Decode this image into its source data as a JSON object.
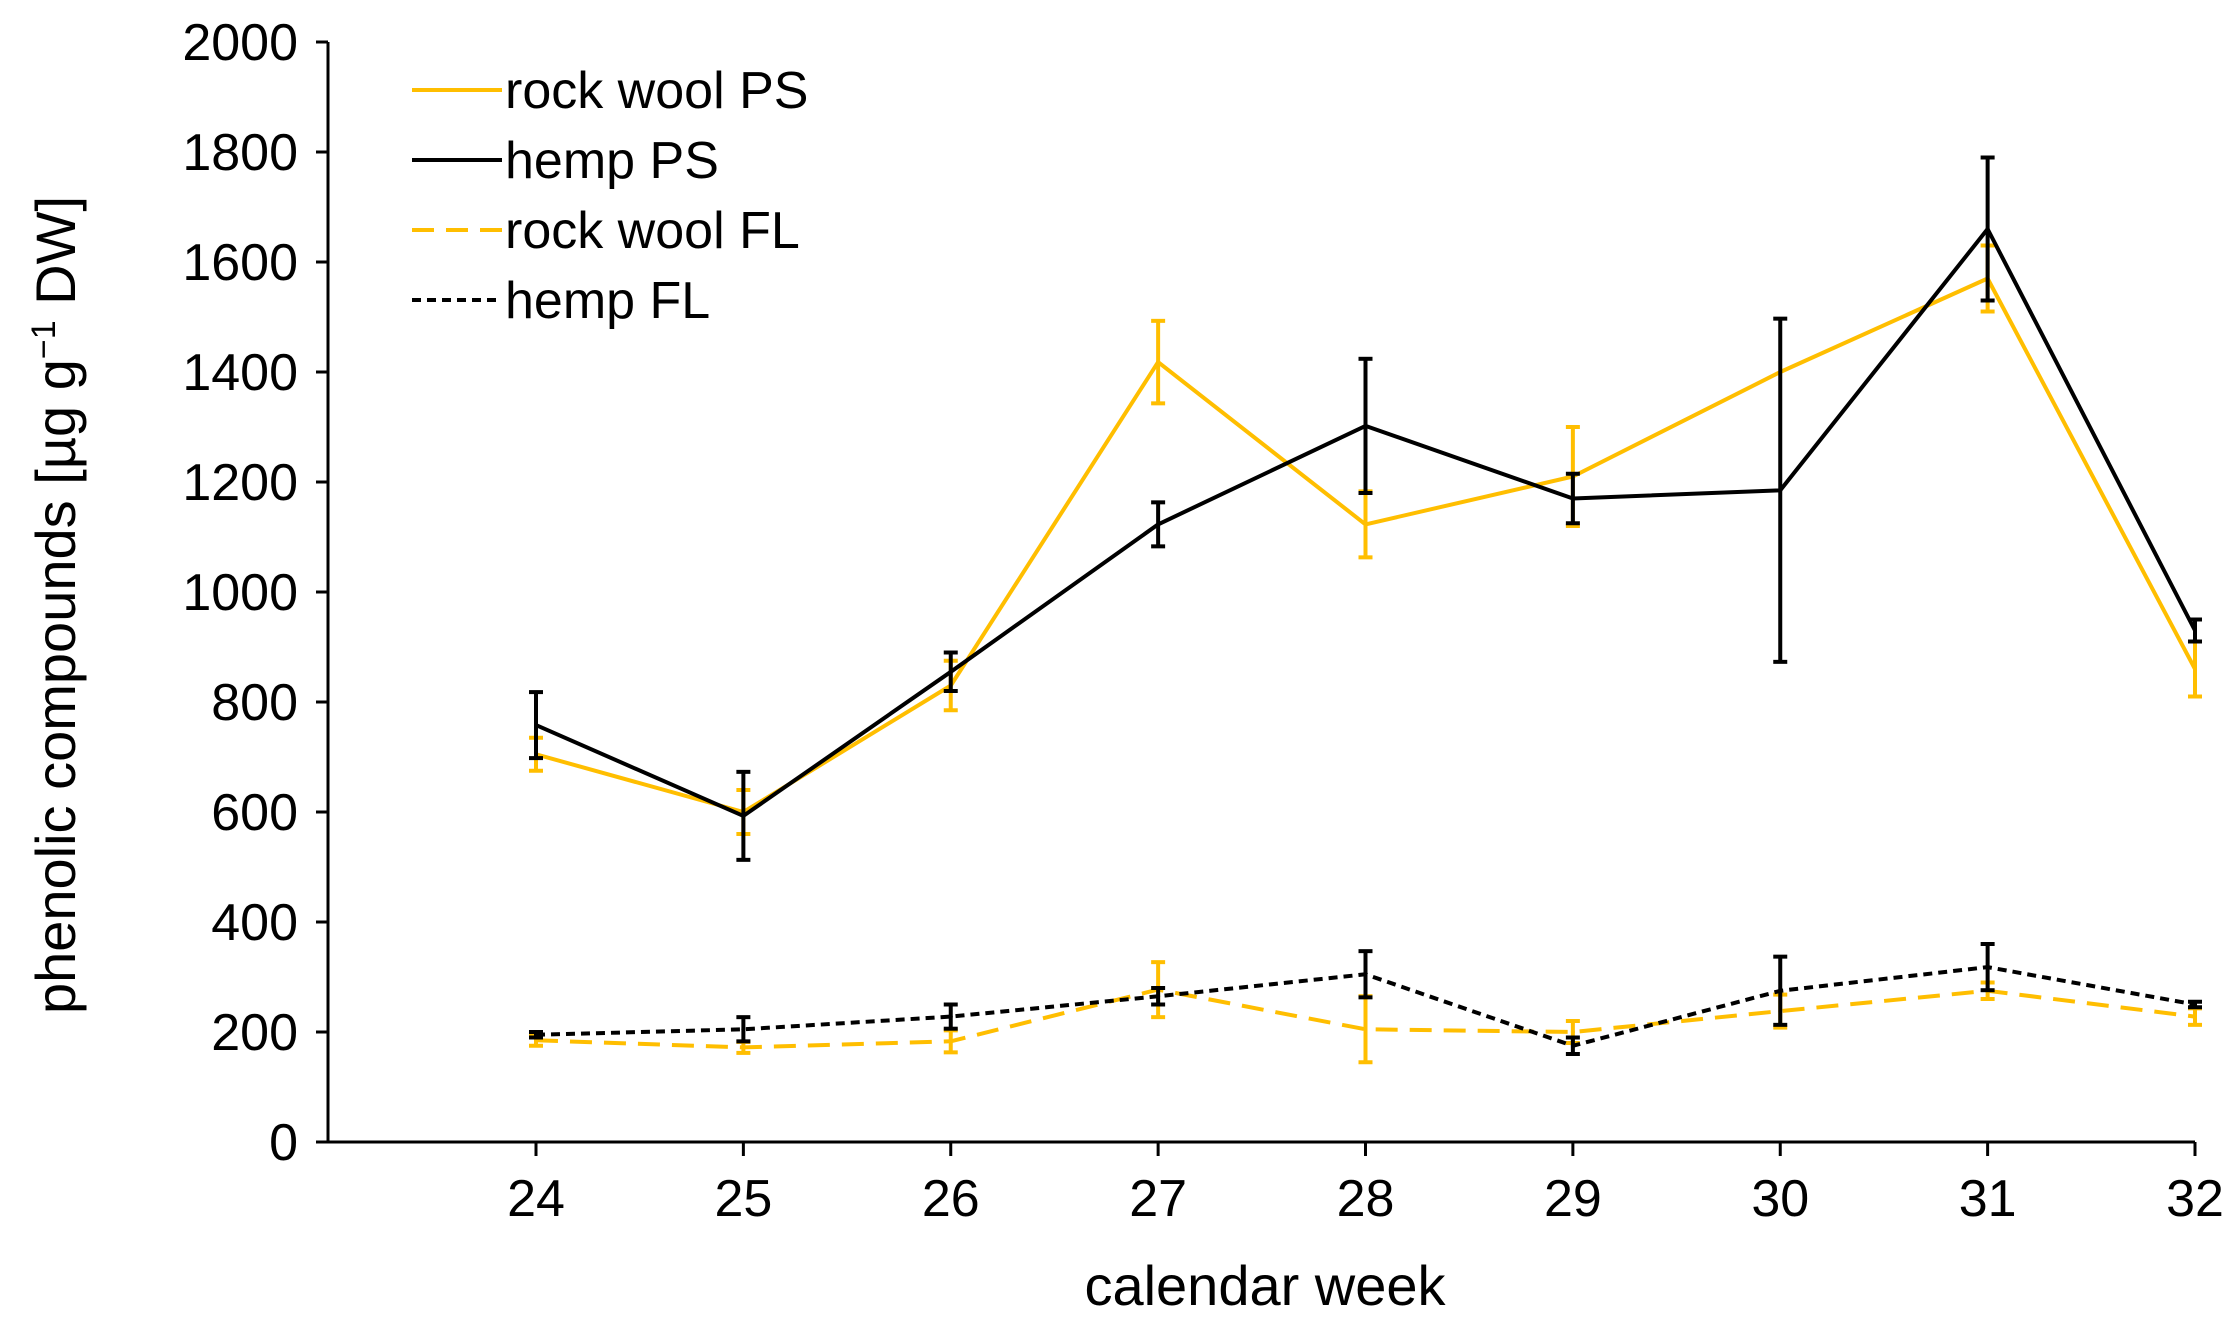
{
  "chart_data": {
    "type": "line",
    "title": "",
    "xlabel": "calendar week",
    "ylabel_main": "phenolic compounds [µg g",
    "ylabel_sup": "−1",
    "ylabel_end": " DW]",
    "x": [
      24,
      25,
      26,
      27,
      28,
      29,
      30,
      31,
      32
    ],
    "x_tick_labels": [
      "24",
      "25",
      "26",
      "27",
      "28",
      "29",
      "30",
      "31",
      "32"
    ],
    "ylim": [
      0,
      2000
    ],
    "y_ticks": [
      0,
      200,
      400,
      600,
      800,
      1000,
      1200,
      1400,
      1600,
      1800,
      2000
    ],
    "y_tick_labels": [
      "0",
      "200",
      "400",
      "600",
      "800",
      "1000",
      "1200",
      "1400",
      "1600",
      "1800",
      "2000"
    ],
    "grid": false,
    "legend_position": "top-left",
    "series": [
      {
        "name": "rock wool PS",
        "color": "#FFBE00",
        "dash": "solid",
        "values": [
          705,
          600,
          830,
          1418,
          1123,
          1210,
          1400,
          1570,
          860
        ],
        "errors": [
          30,
          40,
          45,
          75,
          60,
          90,
          0,
          60,
          50
        ]
      },
      {
        "name": "hemp PS",
        "color": "#000000",
        "dash": "solid",
        "values": [
          758,
          593,
          855,
          1123,
          1302,
          1170,
          1185,
          1660,
          930
        ],
        "errors": [
          60,
          80,
          35,
          40,
          122,
          45,
          312,
          130,
          20
        ]
      },
      {
        "name": "rock wool FL",
        "color": "#FFBE00",
        "dash": "dashed",
        "values": [
          185,
          172,
          183,
          277,
          205,
          200,
          238,
          275,
          228
        ],
        "errors": [
          10,
          10,
          20,
          50,
          60,
          20,
          30,
          15,
          15
        ]
      },
      {
        "name": "hemp FL",
        "color": "#000000",
        "dash": "dotted",
        "values": [
          195,
          205,
          228,
          265,
          305,
          175,
          275,
          318,
          250
        ],
        "errors": [
          5,
          22,
          22,
          15,
          42,
          15,
          62,
          42,
          5
        ]
      }
    ]
  }
}
